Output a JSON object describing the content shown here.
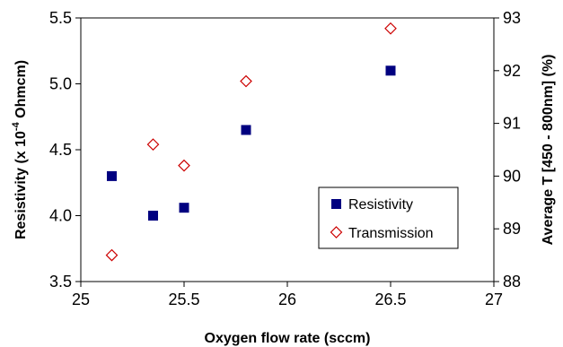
{
  "chart_data": {
    "type": "scatter",
    "xlabel": "Oxygen flow rate (sccm)",
    "ylabel_left": "Resistivity (x 10-4 Ohmcm)",
    "ylabel_left_parts": {
      "pre": "Resistivity (x 10",
      "sup": "-4",
      "post": " Ohmcm)"
    },
    "ylabel_right": "Average T [450 - 800nm] (%)",
    "xlim": [
      25,
      27
    ],
    "ylim_left": [
      3.5,
      5.5
    ],
    "ylim_right": [
      88,
      93
    ],
    "x_ticks": [
      "25",
      "25.5",
      "26",
      "26.5",
      "27"
    ],
    "y_left_ticks": [
      "3.5",
      "4.0",
      "4.5",
      "5.0",
      "5.5"
    ],
    "y_right_ticks": [
      "88",
      "89",
      "90",
      "91",
      "92",
      "93"
    ],
    "legend_position": "lower-right",
    "grid": false,
    "series": [
      {
        "name": "Resistivity",
        "axis": "left",
        "marker": "square",
        "color": "#000080",
        "x": [
          25.15,
          25.35,
          25.5,
          25.8,
          26.5
        ],
        "y": [
          4.3,
          4.0,
          4.06,
          4.65,
          5.1
        ]
      },
      {
        "name": "Transmission",
        "axis": "right",
        "marker": "diamond-open",
        "color": "#cc0000",
        "x": [
          25.15,
          25.35,
          25.5,
          25.8,
          26.5
        ],
        "y": [
          88.5,
          90.6,
          90.2,
          91.8,
          92.8
        ]
      }
    ]
  }
}
